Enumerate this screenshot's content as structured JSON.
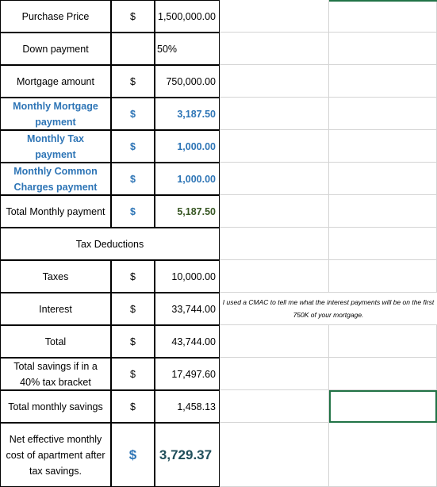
{
  "rows": [
    {
      "label": "Purchase Price",
      "currency": "$",
      "amount": "1,500,000.00"
    },
    {
      "label": "Down payment",
      "amount": "50%"
    },
    {
      "label": "Mortgage amount",
      "currency": "$",
      "amount": "750,000.00"
    },
    {
      "label": "Monthly Mortgage payment",
      "currency": "$",
      "amount": "3,187.50"
    },
    {
      "label": "Monthly Tax payment",
      "currency": "$",
      "amount": "1,000.00"
    },
    {
      "label": "Monthly Common Charges payment",
      "currency": "$",
      "amount": "1,000.00"
    },
    {
      "label": "Total Monthly payment",
      "currency": "$",
      "amount": "5,187.50"
    }
  ],
  "section": "Tax Deductions",
  "deductions": [
    {
      "label": "Taxes",
      "currency": "$",
      "amount": "10,000.00"
    },
    {
      "label": "Interest",
      "currency": "$",
      "amount": "33,744.00"
    },
    {
      "label": "Total",
      "currency": "$",
      "amount": "43,744.00"
    },
    {
      "label": "Total savings if in a 40% tax bracket",
      "currency": "$",
      "amount": "17,497.60"
    },
    {
      "label": "Total monthly savings",
      "currency": "$",
      "amount": "1,458.13"
    },
    {
      "label": "Net effective monthly cost of apartment after tax savings.",
      "currency": "$",
      "amount": "3,729.37"
    }
  ],
  "note": "I used a CMAC to tell me what the interest payments will be on the first 750K of your mortgage."
}
